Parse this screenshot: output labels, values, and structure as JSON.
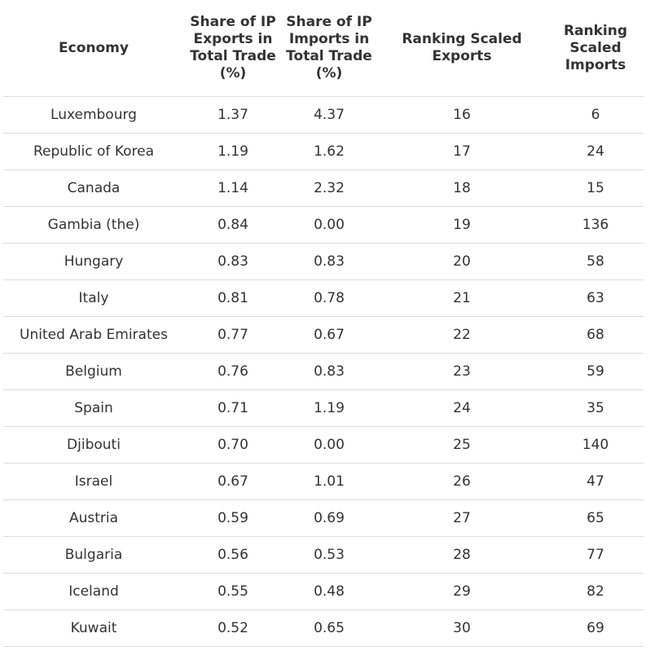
{
  "table": {
    "headers": [
      "Economy",
      "Share of IP Exports in Total Trade (%)",
      "Share of IP Imports in Total Trade (%)",
      "Ranking Scaled Exports",
      "Ranking Scaled Imports"
    ],
    "rows": [
      [
        "Luxembourg",
        "1.37",
        "4.37",
        "16",
        "6"
      ],
      [
        "Republic of Korea",
        "1.19",
        "1.62",
        "17",
        "24"
      ],
      [
        "Canada",
        "1.14",
        "2.32",
        "18",
        "15"
      ],
      [
        "Gambia (the)",
        "0.84",
        "0.00",
        "19",
        "136"
      ],
      [
        "Hungary",
        "0.83",
        "0.83",
        "20",
        "58"
      ],
      [
        "Italy",
        "0.81",
        "0.78",
        "21",
        "63"
      ],
      [
        "United Arab Emirates",
        "0.77",
        "0.67",
        "22",
        "68"
      ],
      [
        "Belgium",
        "0.76",
        "0.83",
        "23",
        "59"
      ],
      [
        "Spain",
        "0.71",
        "1.19",
        "24",
        "35"
      ],
      [
        "Djibouti",
        "0.70",
        "0.00",
        "25",
        "140"
      ],
      [
        "Israel",
        "0.67",
        "1.01",
        "26",
        "47"
      ],
      [
        "Austria",
        "0.59",
        "0.69",
        "27",
        "65"
      ],
      [
        "Bulgaria",
        "0.56",
        "0.53",
        "28",
        "77"
      ],
      [
        "Iceland",
        "0.55",
        "0.48",
        "29",
        "82"
      ],
      [
        "Kuwait",
        "0.52",
        "0.65",
        "30",
        "69"
      ]
    ]
  }
}
